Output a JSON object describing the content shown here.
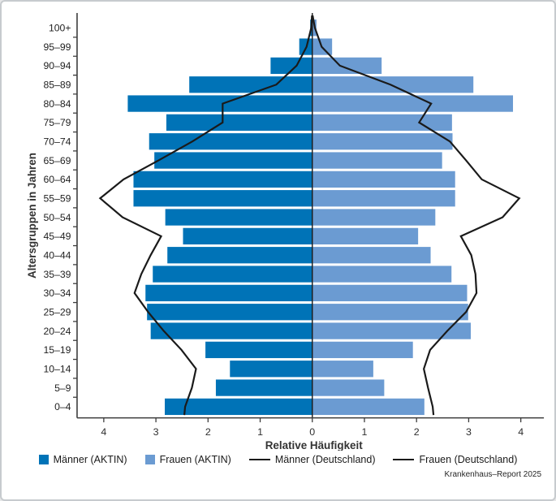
{
  "chart_data": {
    "type": "bar",
    "subtype": "population-pyramid-with-reference-lines",
    "title": "",
    "xlabel": "Relative Häufigkeit",
    "ylabel": "Altersgruppen in Jahren",
    "x_tick_labels": [
      "4",
      "3",
      "2",
      "1",
      "0",
      "1",
      "2",
      "3",
      "4"
    ],
    "x_tick_values": [
      -4,
      -3,
      -2,
      -1,
      0,
      1,
      2,
      3,
      4
    ],
    "xlim": [
      -4.5,
      4.5
    ],
    "grid": false,
    "legend_position": "bottom",
    "age_groups": [
      "100+",
      "95–99",
      "90–94",
      "85–89",
      "80–84",
      "75–79",
      "70–74",
      "65–69",
      "60–64",
      "55–59",
      "50–54",
      "45–49",
      "40–44",
      "35–39",
      "30–34",
      "25–29",
      "20–24",
      "15–19",
      "10–14",
      "5–9",
      "0–4"
    ],
    "series": [
      {
        "name": "Männer (AKTIN)",
        "type": "bar",
        "side": "left",
        "color": "#0073b7",
        "values": [
          0.04,
          0.25,
          0.8,
          2.36,
          3.54,
          2.8,
          3.13,
          3.03,
          3.43,
          3.43,
          2.82,
          2.48,
          2.78,
          3.06,
          3.2,
          3.17,
          3.1,
          2.05,
          1.58,
          1.85,
          2.83
        ]
      },
      {
        "name": "Frauen (AKTIN)",
        "type": "bar",
        "side": "right",
        "color": "#6b9bd2",
        "values": [
          0.08,
          0.38,
          1.33,
          3.09,
          3.85,
          2.68,
          2.69,
          2.49,
          2.74,
          2.74,
          2.36,
          2.03,
          2.27,
          2.67,
          2.97,
          2.99,
          3.04,
          1.93,
          1.17,
          1.38,
          2.15
        ]
      },
      {
        "name": "Männer (Deutschland)",
        "type": "line",
        "side": "left",
        "color": "#1a1a1a",
        "values": [
          0.02,
          0.11,
          0.3,
          0.69,
          1.72,
          1.72,
          2.3,
          2.95,
          3.62,
          4.07,
          3.64,
          2.9,
          3.1,
          3.28,
          3.41,
          3.15,
          2.85,
          2.51,
          2.23,
          2.31,
          2.44
        ]
      },
      {
        "name": "Frauen (Deutschland)",
        "type": "line",
        "side": "right",
        "color": "#1a1a1a",
        "values": [
          0.05,
          0.18,
          0.53,
          1.5,
          2.28,
          2.05,
          2.64,
          2.95,
          3.25,
          3.97,
          3.65,
          2.85,
          3.05,
          3.13,
          3.15,
          2.95,
          2.59,
          2.26,
          2.14,
          2.22,
          2.31
        ]
      }
    ],
    "axis_color": "#3c3c3c"
  },
  "legend": {
    "items": [
      {
        "label": "Männer (AKTIN)",
        "swatch": "square",
        "color": "#0073b7"
      },
      {
        "label": "Frauen (AKTIN)",
        "swatch": "square",
        "color": "#6b9bd2"
      },
      {
        "label": "Männer (Deutschland)",
        "swatch": "line",
        "color": "#1a1a1a"
      },
      {
        "label": "Frauen (Deutschland)",
        "swatch": "line",
        "color": "#1a1a1a"
      }
    ]
  },
  "caption": "Krankenhaus–Report 2025"
}
